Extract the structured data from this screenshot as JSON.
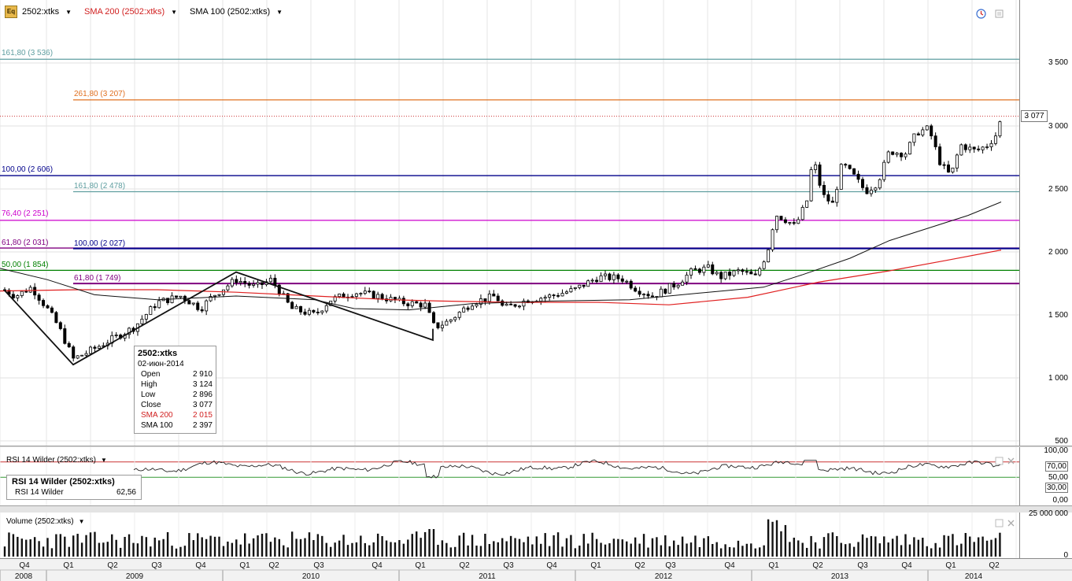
{
  "header": {
    "symbol_icon": "Eq",
    "symbol_label": "2502:xtks",
    "sma200_label": "SMA 200 (2502:xtks)",
    "sma100_label": "SMA 100 (2502:xtks)"
  },
  "colors": {
    "price": "#000000",
    "sma200": "#e02020",
    "sma100": "#111111",
    "fib_teal": "#5f9ea0",
    "fib_orange": "#e07020",
    "fib_navy": "#00008b",
    "fib_magenta": "#cc00cc",
    "fib_purple": "#800080",
    "fib_green": "#008000",
    "rsi_line": "#222222",
    "rsi_upper": "#cc3333",
    "rsi_lower": "#339933",
    "volume": "#111111"
  },
  "fib_labels": [
    {
      "label": "161,80 (3 536)",
      "value": 3536,
      "color": "#5f9ea0"
    },
    {
      "label": "261,80 (3 207)",
      "value": 3207,
      "color": "#e07020"
    },
    {
      "label": "100,00 (2 606)",
      "value": 2606,
      "color": "#00008b"
    },
    {
      "label": "161,80 (2 478)",
      "value": 2478,
      "color": "#5f9ea0"
    },
    {
      "label": "76,40 (2 251)",
      "value": 2251,
      "color": "#cc00cc"
    },
    {
      "label": "61,80 (2 031)",
      "value": 2031,
      "color": "#800080"
    },
    {
      "label": "100,00 (2 027)",
      "value": 2027,
      "color": "#00008b"
    },
    {
      "label": "50,00 (1 854)",
      "value": 1854,
      "color": "#008000"
    },
    {
      "label": "61,80 (1 749)",
      "value": 1749,
      "color": "#800080"
    }
  ],
  "price_tag": "3 077",
  "tooltip": {
    "title": "2502:xtks",
    "date": "02-июн-2014",
    "rows": [
      {
        "k": "Open",
        "v": "2 910"
      },
      {
        "k": "High",
        "v": "3 124"
      },
      {
        "k": "Low",
        "v": "2 896"
      },
      {
        "k": "Close",
        "v": "3 077"
      },
      {
        "k": "SMA 200",
        "v": "2 015"
      },
      {
        "k": "SMA 100",
        "v": "2 397"
      }
    ]
  },
  "rsi": {
    "header": "RSI 14 Wilder (2502:xtks)",
    "box_title": "RSI 14 Wilder (2502:xtks)",
    "box_label": "RSI 14 Wilder",
    "box_value": "62,56",
    "ticks": [
      "100,00",
      "70,00",
      "50,00",
      "30,00",
      "0,00"
    ],
    "upper": 70,
    "lower": 30
  },
  "volume": {
    "header": "Volume (2502:xtks)",
    "ticks": [
      "25 000 000",
      "0"
    ]
  },
  "axis": {
    "price_ticks": [
      "3 500",
      "3 000",
      "2 500",
      "2 000",
      "1 500",
      "1 000",
      "500"
    ],
    "quarters": [
      "Q4",
      "Q1",
      "Q2",
      "Q3",
      "Q4",
      "Q1",
      "Q2",
      "Q3",
      "Q4",
      "Q1",
      "Q2",
      "Q3",
      "Q4",
      "Q1",
      "Q2",
      "Q3",
      "Q4",
      "Q1",
      "Q2",
      "Q3",
      "Q4",
      "Q1",
      "Q2"
    ],
    "years": [
      "2008",
      "2009",
      "2010",
      "2011",
      "2012",
      "2013",
      "2014"
    ]
  },
  "chart_data": {
    "type": "candlestick",
    "symbol": "2502:xtks",
    "frequency": "weekly",
    "y_range": [
      500,
      3700
    ],
    "last_close": 3077,
    "series": [
      {
        "name": "Close",
        "x": [
          "2008-Q4",
          "2009-Q1",
          "2009-Q2",
          "2009-Q3",
          "2009-Q4",
          "2010-Q1",
          "2010-Q2",
          "2010-Q3",
          "2010-Q4",
          "2011-Q1",
          "2011-Q2",
          "2011-Q3",
          "2011-Q4",
          "2012-Q1",
          "2012-Q2",
          "2012-Q3",
          "2012-Q4",
          "2013-Q1",
          "2013-Q2",
          "2013-Q3",
          "2013-Q4",
          "2014-Q1",
          "2014-Q2"
        ],
        "values": [
          1650,
          1150,
          1400,
          1650,
          1700,
          1780,
          1700,
          1500,
          1650,
          1550,
          1450,
          1600,
          1650,
          1800,
          1700,
          1800,
          1900,
          2350,
          2500,
          2600,
          2950,
          2800,
          3077
        ]
      },
      {
        "name": "SMA 200",
        "values": [
          1700,
          1690,
          1680,
          1670,
          1660,
          1650,
          1650,
          1640,
          1620,
          1610,
          1600,
          1590,
          1600,
          1610,
          1600,
          1620,
          1680,
          1760,
          1850,
          1900,
          1950,
          1980,
          2015
        ]
      },
      {
        "name": "SMA 100",
        "values": [
          1850,
          1600,
          1580,
          1600,
          1620,
          1640,
          1620,
          1560,
          1540,
          1560,
          1580,
          1590,
          1600,
          1640,
          1650,
          1700,
          1750,
          1850,
          1980,
          2100,
          2200,
          2300,
          2397
        ]
      }
    ],
    "rsi_14": {
      "last": 62.56,
      "range": [
        0,
        100
      ],
      "levels": [
        70,
        30
      ]
    },
    "volume_range": [
      0,
      25000000
    ]
  }
}
